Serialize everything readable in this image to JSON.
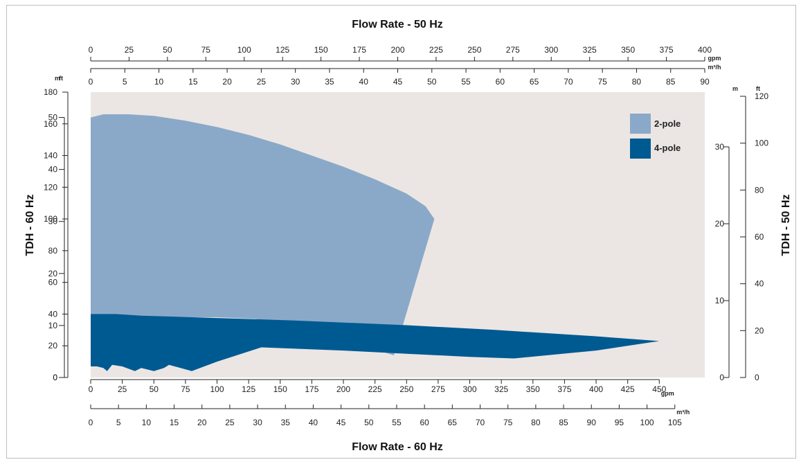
{
  "colors": {
    "plot_background": "#ebe6e3",
    "two_pole": "#8aa9c9",
    "four_pole": "#005a92"
  },
  "chart_data": {
    "type": "area",
    "titles": {
      "top": "Flow Rate - 50 Hz",
      "bottom": "Flow Rate - 60 Hz",
      "left": "TDH - 60 Hz",
      "right": "TDH - 50 Hz"
    },
    "axes": {
      "top_gpm": {
        "unit": "gpm",
        "ticks": [
          0,
          25,
          50,
          75,
          100,
          125,
          150,
          175,
          200,
          225,
          250,
          275,
          300,
          325,
          350,
          375,
          400
        ]
      },
      "top_m3h": {
        "unit": "m³/h",
        "ticks": [
          0,
          5,
          10,
          15,
          20,
          25,
          30,
          35,
          40,
          45,
          50,
          55,
          60,
          65,
          70,
          75,
          80,
          85,
          90
        ]
      },
      "bottom_gpm": {
        "unit": "gpm",
        "ticks": [
          0,
          25,
          50,
          75,
          100,
          125,
          150,
          175,
          200,
          225,
          250,
          275,
          300,
          325,
          350,
          375,
          400,
          425,
          450
        ],
        "range": [
          0,
          486
        ]
      },
      "bottom_m3h": {
        "unit": "m³/h",
        "ticks": [
          0,
          5,
          10,
          15,
          20,
          25,
          30,
          35,
          40,
          45,
          50,
          55,
          60,
          65,
          70,
          75,
          80,
          85,
          90,
          95,
          100,
          105
        ]
      },
      "left_m": {
        "unit": "m",
        "ticks": [
          0,
          10,
          20,
          30,
          40,
          50
        ]
      },
      "left_ft": {
        "unit": "ft",
        "ticks": [
          0,
          20,
          40,
          60,
          80,
          100,
          120,
          140,
          160,
          180
        ],
        "range": [
          0,
          180
        ]
      },
      "right_m": {
        "unit": "m",
        "ticks": [
          0,
          10,
          20,
          30
        ]
      },
      "right_ft": {
        "unit": "ft",
        "ticks": [
          0,
          20,
          40,
          60,
          80,
          100,
          120
        ]
      }
    },
    "legend": {
      "position": "top-right",
      "entries": [
        {
          "label": "2-pole",
          "color": "#8aa9c9"
        },
        {
          "label": "4-pole",
          "color": "#005a92"
        }
      ]
    },
    "series": [
      {
        "name": "2-pole",
        "x_unit": "gpm (60 Hz)",
        "y_unit": "ft (60 Hz)",
        "upper": [
          [
            0,
            164
          ],
          [
            10,
            166
          ],
          [
            30,
            166
          ],
          [
            50,
            165
          ],
          [
            75,
            162
          ],
          [
            100,
            158
          ],
          [
            125,
            153
          ],
          [
            150,
            147
          ],
          [
            175,
            140
          ],
          [
            200,
            133
          ],
          [
            225,
            125
          ],
          [
            250,
            116
          ],
          [
            265,
            108
          ],
          [
            272,
            100
          ]
        ],
        "lower": [
          [
            0,
            38
          ],
          [
            100,
            38
          ],
          [
            130,
            37
          ],
          [
            160,
            33
          ],
          [
            200,
            24
          ],
          [
            240,
            14
          ],
          [
            272,
            100
          ]
        ]
      },
      {
        "name": "4-pole",
        "x_unit": "gpm (60 Hz)",
        "y_unit": "ft (60 Hz)",
        "upper": [
          [
            0,
            40
          ],
          [
            20,
            40
          ],
          [
            40,
            39
          ],
          [
            80,
            38
          ],
          [
            160,
            36
          ],
          [
            250,
            33
          ],
          [
            320,
            30
          ],
          [
            400,
            26
          ],
          [
            450,
            23
          ]
        ],
        "lower": [
          [
            0,
            7
          ],
          [
            5,
            7
          ],
          [
            10,
            6
          ],
          [
            13,
            4
          ],
          [
            17,
            8
          ],
          [
            25,
            7
          ],
          [
            35,
            4
          ],
          [
            40,
            6
          ],
          [
            50,
            4
          ],
          [
            58,
            6
          ],
          [
            62,
            8
          ],
          [
            80,
            4
          ],
          [
            100,
            10
          ],
          [
            135,
            19
          ],
          [
            200,
            17
          ],
          [
            250,
            15
          ],
          [
            300,
            13
          ],
          [
            335,
            12
          ],
          [
            400,
            17
          ],
          [
            450,
            23
          ]
        ]
      }
    ]
  }
}
